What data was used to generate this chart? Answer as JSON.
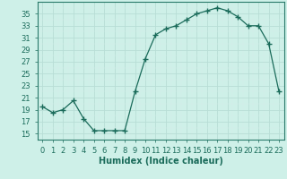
{
  "x": [
    0,
    1,
    2,
    3,
    4,
    5,
    6,
    7,
    8,
    9,
    10,
    11,
    12,
    13,
    14,
    15,
    16,
    17,
    18,
    19,
    20,
    21,
    22,
    23
  ],
  "y": [
    19.5,
    18.5,
    19.0,
    20.5,
    17.5,
    15.5,
    15.5,
    15.5,
    15.5,
    22.0,
    27.5,
    31.5,
    32.5,
    33.0,
    34.0,
    35.0,
    35.5,
    36.0,
    35.5,
    34.5,
    33.0,
    33.0,
    30.0,
    22.0
  ],
  "xlabel": "Humidex (Indice chaleur)",
  "ylim": [
    14,
    37
  ],
  "xlim": [
    -0.5,
    23.5
  ],
  "yticks": [
    15,
    17,
    19,
    21,
    23,
    25,
    27,
    29,
    31,
    33,
    35
  ],
  "xtick_labels": [
    "0",
    "1",
    "2",
    "3",
    "4",
    "5",
    "6",
    "7",
    "8",
    "9",
    "10",
    "11",
    "12",
    "13",
    "14",
    "15",
    "16",
    "17",
    "18",
    "19",
    "20",
    "21",
    "22",
    "23"
  ],
  "line_color": "#1a6b5a",
  "marker": "+",
  "bg_color": "#cef0e8",
  "grid_color_major": "#b8ddd6",
  "grid_color_minor": "#d4ede8",
  "axis_color": "#2a7a6a",
  "xlabel_fontsize": 7,
  "tick_fontsize": 6
}
